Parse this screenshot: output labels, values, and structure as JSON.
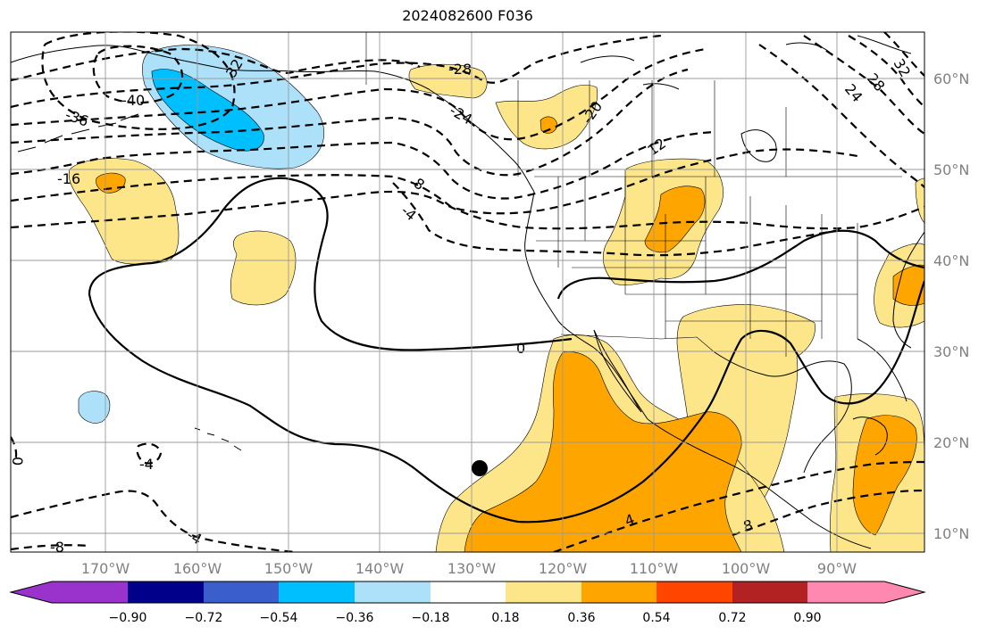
{
  "title": "2024082600 F036",
  "colors": {
    "neg_090": "#9933CC",
    "neg_072": "#00008B",
    "neg_054": "#3A5FCD",
    "neg_036": "#00BFFF",
    "neg_018": "#ADE1FA",
    "zero": "#FFFFFF",
    "pos_018": "#FDE68A",
    "pos_036": "#FFA500",
    "pos_054": "#FF4500",
    "pos_072": "#B22222",
    "pos_090": "#FF88B0"
  },
  "colorbar": {
    "ticks": [
      "−0.90",
      "−0.72",
      "−0.54",
      "−0.36",
      "−0.18",
      "0.18",
      "0.36",
      "0.54",
      "0.72",
      "0.90"
    ]
  },
  "axes": {
    "lon_labels": [
      "170°W",
      "160°W",
      "150°W",
      "140°W",
      "130°W",
      "120°W",
      "110°W",
      "100°W",
      "90°W"
    ],
    "lat_labels": [
      "60°N",
      "50°N",
      "40°N",
      "30°N",
      "20°N",
      "10°N"
    ]
  },
  "contour_labels": [
    "-28",
    "-40",
    "-36",
    "32",
    "-24",
    "-20",
    "12",
    "-16",
    "8",
    "-4",
    "0",
    "4",
    "8",
    "-4",
    "-8",
    "-4",
    "0",
    "24",
    "28",
    "32"
  ],
  "marker": "storm-center-dot"
}
